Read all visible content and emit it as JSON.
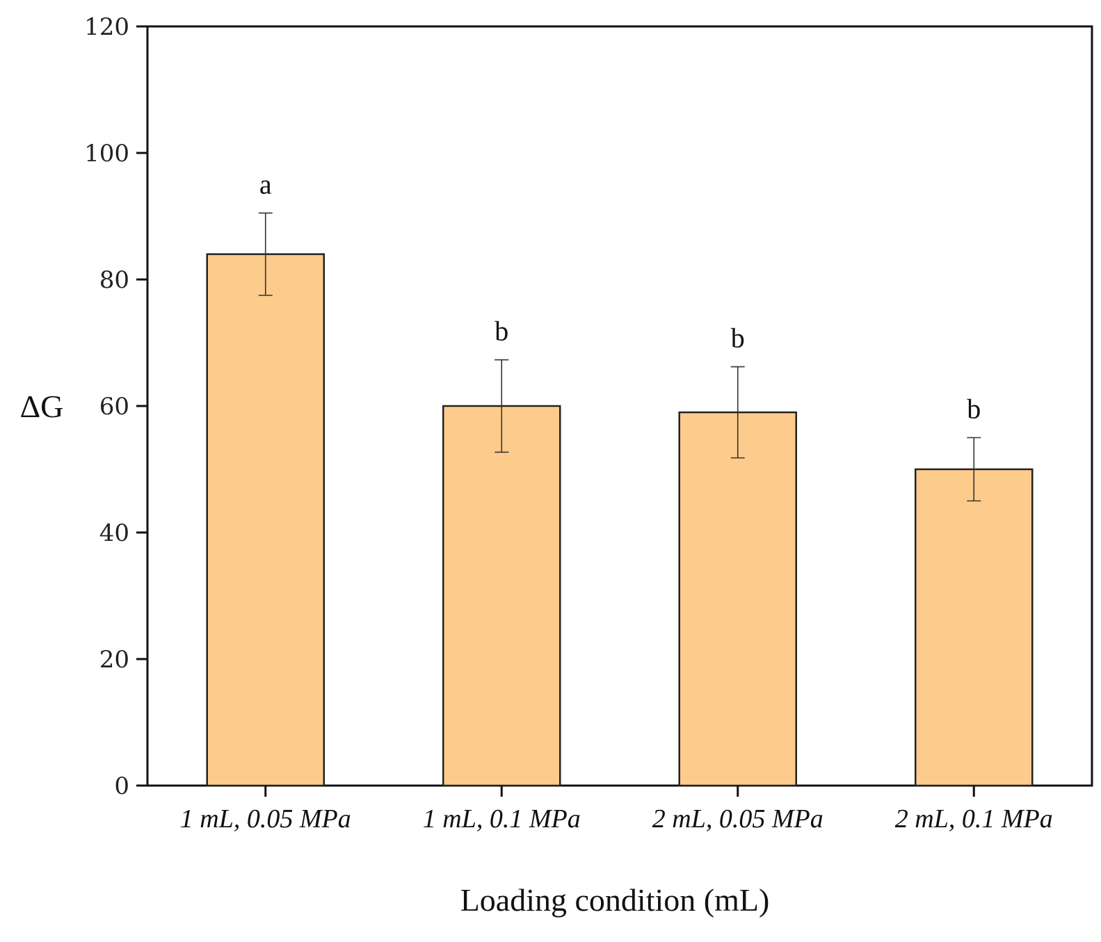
{
  "chart_data": {
    "type": "bar",
    "categories": [
      "1 mL, 0.05 MPa",
      "1 mL, 0.1 MPa",
      "2 mL, 0.05 MPa",
      "2 mL, 0.1 MPa"
    ],
    "values": [
      84,
      60,
      59,
      50
    ],
    "errors": [
      6.5,
      7.3,
      7.2,
      5.0
    ],
    "significance": [
      "a",
      "b",
      "b",
      "b"
    ],
    "title": "",
    "xlabel": "Loading condition (mL)",
    "ylabel": "ΔG",
    "ylim": [
      0,
      120
    ],
    "yticks": [
      "0",
      "20",
      "40",
      "60",
      "80",
      "100",
      "120"
    ],
    "bar_color": "#fdcc8d",
    "grid": false
  }
}
